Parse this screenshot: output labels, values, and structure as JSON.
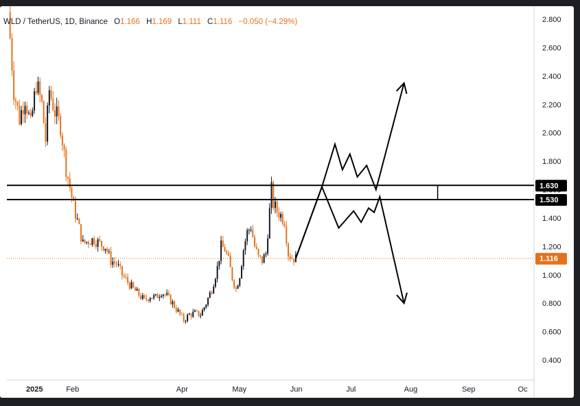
{
  "legend": {
    "symbol": "WLD / TetherUS, 1D, Binance",
    "o_label": "O",
    "o": "1.166",
    "h_label": "H",
    "h": "1.169",
    "l_label": "L",
    "l": "1.111",
    "c_label": "C",
    "c": "1.116",
    "change": "−0.050 (−4.29%)"
  },
  "colors": {
    "up": "#131722",
    "down": "#e4721c",
    "level_line": "#000000",
    "price_badge": "#e4721c",
    "level_badge": "#000000"
  },
  "chart_data": {
    "type": "candlestick",
    "y_axis": {
      "ylim": [
        0.3,
        2.9
      ],
      "ticks": [
        "2.800",
        "2.600",
        "2.400",
        "2.200",
        "2.000",
        "1.800",
        "1.600",
        "1.400",
        "1.200",
        "1.000",
        "0.800",
        "0.600",
        "0.400"
      ],
      "tick_values": [
        2.8,
        2.6,
        2.4,
        2.2,
        2.0,
        1.8,
        1.6,
        1.4,
        1.2,
        1.0,
        0.8,
        0.6,
        0.4
      ]
    },
    "x_axis": {
      "labels": [
        "2025",
        "Feb",
        "Apr",
        "May",
        "Jun",
        "Jul",
        "Aug",
        "Sep",
        "Oc"
      ],
      "label_days": [
        0,
        31,
        90,
        120,
        151,
        181,
        212,
        243,
        273
      ]
    },
    "grid": false,
    "price_path": [
      [
        0,
        2.85
      ],
      [
        3,
        2.3
      ],
      [
        6,
        2.1
      ],
      [
        9,
        2.25
      ],
      [
        12,
        2.05
      ],
      [
        15,
        2.35
      ],
      [
        18,
        2.2
      ],
      [
        20,
        1.95
      ],
      [
        22,
        2.3
      ],
      [
        25,
        2.15
      ],
      [
        28,
        2.05
      ],
      [
        31,
        1.75
      ],
      [
        33,
        1.62
      ],
      [
        35,
        1.48
      ],
      [
        37,
        1.38
      ],
      [
        40,
        1.22
      ],
      [
        43,
        1.24
      ],
      [
        46,
        1.25
      ],
      [
        49,
        1.22
      ],
      [
        52,
        1.2
      ],
      [
        55,
        1.1
      ],
      [
        58,
        1.08
      ],
      [
        61,
        1.0
      ],
      [
        64,
        0.95
      ],
      [
        67,
        0.9
      ],
      [
        70,
        0.86
      ],
      [
        73,
        0.82
      ],
      [
        76,
        0.85
      ],
      [
        79,
        0.84
      ],
      [
        82,
        0.88
      ],
      [
        85,
        0.85
      ],
      [
        88,
        0.8
      ],
      [
        91,
        0.74
      ],
      [
        94,
        0.68
      ],
      [
        97,
        0.72
      ],
      [
        100,
        0.73
      ],
      [
        103,
        0.72
      ],
      [
        106,
        0.8
      ],
      [
        109,
        0.9
      ],
      [
        112,
        1.05
      ],
      [
        114,
        1.2
      ],
      [
        116,
        1.18
      ],
      [
        118,
        1.1
      ],
      [
        120,
        0.98
      ],
      [
        122,
        0.9
      ],
      [
        124,
        1.0
      ],
      [
        126,
        1.18
      ],
      [
        128,
        1.3
      ],
      [
        130,
        1.34
      ],
      [
        132,
        1.2
      ],
      [
        134,
        1.12
      ],
      [
        136,
        1.1
      ],
      [
        138,
        1.15
      ],
      [
        140,
        1.45
      ],
      [
        141,
        1.6
      ],
      [
        142,
        1.5
      ],
      [
        144,
        1.45
      ],
      [
        146,
        1.42
      ],
      [
        148,
        1.38
      ],
      [
        150,
        1.15
      ],
      [
        152,
        1.12
      ],
      [
        154,
        1.116
      ]
    ],
    "last_price": 1.116,
    "levels": [
      1.63,
      1.53
    ],
    "level_labels": [
      "1.630",
      "1.530"
    ],
    "price_label": "1.116",
    "projections": {
      "bullish": [
        [
          154,
          1.116
        ],
        [
          168,
          1.62
        ],
        [
          175,
          1.92
        ],
        [
          179,
          1.74
        ],
        [
          183,
          1.85
        ],
        [
          187,
          1.69
        ],
        [
          192,
          1.77
        ],
        [
          197,
          1.6
        ],
        [
          212,
          2.35
        ]
      ],
      "bearish": [
        [
          154,
          1.116
        ],
        [
          168,
          1.62
        ],
        [
          177,
          1.33
        ],
        [
          185,
          1.45
        ],
        [
          189,
          1.37
        ],
        [
          193,
          1.47
        ],
        [
          196,
          1.44
        ],
        [
          199,
          1.55
        ],
        [
          212,
          0.8
        ]
      ]
    },
    "measure_bracket_day": 230
  }
}
